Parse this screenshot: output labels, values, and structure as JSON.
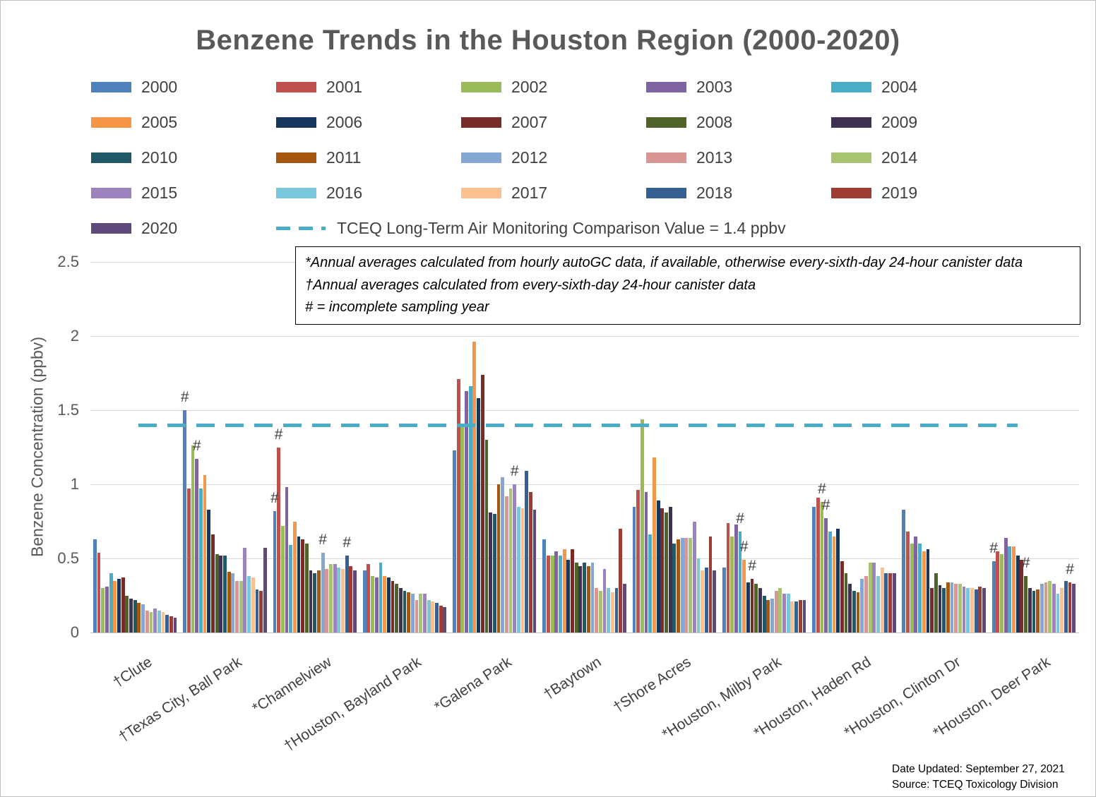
{
  "title": "Benzene Trends in the Houston Region (2000-2020)",
  "annotations": [
    "*Annual averages calculated from hourly autoGC data, if available, otherwise every-sixth-day 24-hour canister data",
    "†Annual averages calculated from every-sixth-day 24-hour canister data",
    "# = incomplete sampling year"
  ],
  "footer": {
    "date_updated": "Date Updated: September 27, 2021",
    "source": "Source: TCEQ Toxicology Division"
  },
  "chart_data": {
    "type": "bar",
    "title": "Benzene Trends in the Houston Region (2000-2020)",
    "xlabel": "",
    "ylabel": "Benzene Concentration (ppbv)",
    "ylim": [
      0,
      2.5
    ],
    "yticks": [
      "0",
      "0.5",
      "1",
      "1.5",
      "2",
      "2.5"
    ],
    "grid": true,
    "legend_position": "top",
    "reference_line": {
      "value": 1.4,
      "label": "TCEQ Long-Term Air Monitoring Comparison Value = 1.4 ppbv",
      "color": "#4BACC6",
      "style": "dashed"
    },
    "categories": [
      "†Clute",
      "†Texas City, Ball Park",
      "*Channelview",
      "†Houston, Bayland Park",
      "*Galena Park",
      "†Baytown",
      "†Shore Acres",
      "*Houston, Milby Park",
      "*Houston, Haden Rd",
      "*Houston, Clinton Dr",
      "*Houston, Deer Park"
    ],
    "series": [
      {
        "name": "2000",
        "color": "#4F81BD",
        "values": [
          0.63,
          1.5,
          0.82,
          0.42,
          1.23,
          0.63,
          0.85,
          0.44,
          0.85,
          0.83,
          0.48
        ]
      },
      {
        "name": "2001",
        "color": "#C0504D",
        "values": [
          0.54,
          0.97,
          1.25,
          0.46,
          1.71,
          0.52,
          0.96,
          0.74,
          0.91,
          0.68,
          0.55
        ]
      },
      {
        "name": "2002",
        "color": "#9BBB59",
        "values": [
          0.3,
          1.26,
          0.72,
          0.38,
          1.4,
          0.52,
          1.44,
          0.65,
          0.88,
          0.6,
          0.53
        ]
      },
      {
        "name": "2003",
        "color": "#8064A2",
        "values": [
          0.31,
          1.17,
          0.98,
          0.37,
          1.63,
          0.55,
          0.95,
          0.73,
          0.77,
          0.65,
          0.64
        ]
      },
      {
        "name": "2004",
        "color": "#4BACC6",
        "values": [
          0.4,
          0.97,
          0.59,
          0.47,
          1.66,
          0.52,
          0.66,
          0.68,
          0.68,
          0.6,
          0.58
        ]
      },
      {
        "name": "2005",
        "color": "#F79646",
        "values": [
          0.35,
          1.06,
          0.75,
          0.38,
          1.96,
          0.56,
          1.18,
          0.49,
          0.65,
          0.55,
          0.58
        ]
      },
      {
        "name": "2006",
        "color": "#17375E",
        "values": [
          0.36,
          0.83,
          0.65,
          0.37,
          1.58,
          0.49,
          0.89,
          0.34,
          0.7,
          0.56,
          0.52
        ]
      },
      {
        "name": "2007",
        "color": "#772C2A",
        "values": [
          0.37,
          0.66,
          0.63,
          0.35,
          1.74,
          0.56,
          0.84,
          0.36,
          0.48,
          0.3,
          0.49
        ]
      },
      {
        "name": "2008",
        "color": "#4F6228",
        "values": [
          0.25,
          0.53,
          0.6,
          0.33,
          1.3,
          0.47,
          0.81,
          0.33,
          0.4,
          0.4,
          0.38
        ]
      },
      {
        "name": "2009",
        "color": "#3F3151",
        "values": [
          0.23,
          0.52,
          0.42,
          0.3,
          0.81,
          0.45,
          0.85,
          0.3,
          0.33,
          0.32,
          0.3
        ]
      },
      {
        "name": "2010",
        "color": "#205867",
        "values": [
          0.22,
          0.52,
          0.4,
          0.28,
          0.8,
          0.47,
          0.6,
          0.25,
          0.28,
          0.3,
          0.28
        ]
      },
      {
        "name": "2011",
        "color": "#A6570F",
        "values": [
          0.2,
          0.41,
          0.42,
          0.27,
          1.0,
          0.45,
          0.63,
          0.22,
          0.27,
          0.34,
          0.29
        ]
      },
      {
        "name": "2012",
        "color": "#84A7D4",
        "values": [
          0.19,
          0.4,
          0.54,
          0.26,
          1.05,
          0.47,
          0.64,
          0.23,
          0.36,
          0.34,
          0.33
        ]
      },
      {
        "name": "2013",
        "color": "#D99694",
        "values": [
          0.15,
          0.35,
          0.43,
          0.22,
          0.92,
          0.3,
          0.64,
          0.28,
          0.38,
          0.33,
          0.34
        ]
      },
      {
        "name": "2014",
        "color": "#A9C471",
        "values": [
          0.14,
          0.35,
          0.46,
          0.26,
          0.97,
          0.28,
          0.64,
          0.3,
          0.47,
          0.33,
          0.35
        ]
      },
      {
        "name": "2015",
        "color": "#9C83BD",
        "values": [
          0.16,
          0.57,
          0.46,
          0.26,
          1.0,
          0.43,
          0.75,
          0.26,
          0.47,
          0.31,
          0.33
        ]
      },
      {
        "name": "2016",
        "color": "#79C7DA",
        "values": [
          0.15,
          0.38,
          0.44,
          0.22,
          0.85,
          0.3,
          0.5,
          0.26,
          0.38,
          0.3,
          0.26
        ]
      },
      {
        "name": "2017",
        "color": "#FAC090",
        "values": [
          0.14,
          0.37,
          0.43,
          0.21,
          0.84,
          0.27,
          0.42,
          0.21,
          0.44,
          0.3,
          0.3
        ]
      },
      {
        "name": "2018",
        "color": "#376092",
        "values": [
          0.12,
          0.29,
          0.52,
          0.2,
          1.09,
          0.3,
          0.44,
          0.21,
          0.4,
          0.29,
          0.35
        ]
      },
      {
        "name": "2019",
        "color": "#9E3B33",
        "values": [
          0.11,
          0.28,
          0.45,
          0.18,
          0.95,
          0.7,
          0.65,
          0.22,
          0.4,
          0.31,
          0.34
        ]
      },
      {
        "name": "2020",
        "color": "#5F497A",
        "values": [
          0.1,
          0.57,
          0.42,
          0.17,
          0.83,
          0.33,
          0.42,
          0.22,
          0.4,
          0.3,
          0.33
        ]
      }
    ],
    "incomplete_year_flags": [
      {
        "site": "†Texas City, Ball Park",
        "year": "2000"
      },
      {
        "site": "†Texas City, Ball Park",
        "year": "2003"
      },
      {
        "site": "*Channelview",
        "year": "2000"
      },
      {
        "site": "*Channelview",
        "year": "2001"
      },
      {
        "site": "*Channelview",
        "year": "2012"
      },
      {
        "site": "*Channelview",
        "year": "2018"
      },
      {
        "site": "*Galena Park",
        "year": "2015"
      },
      {
        "site": "*Houston, Milby Park",
        "year": "2004"
      },
      {
        "site": "*Houston, Milby Park",
        "year": "2005"
      },
      {
        "site": "*Houston, Milby Park",
        "year": "2007"
      },
      {
        "site": "*Houston, Haden Rd",
        "year": "2002"
      },
      {
        "site": "*Houston, Haden Rd",
        "year": "2003"
      },
      {
        "site": "*Houston, Deer Park",
        "year": "2000"
      },
      {
        "site": "*Houston, Deer Park",
        "year": "2008"
      },
      {
        "site": "*Houston, Deer Park",
        "year": "2019"
      }
    ]
  }
}
